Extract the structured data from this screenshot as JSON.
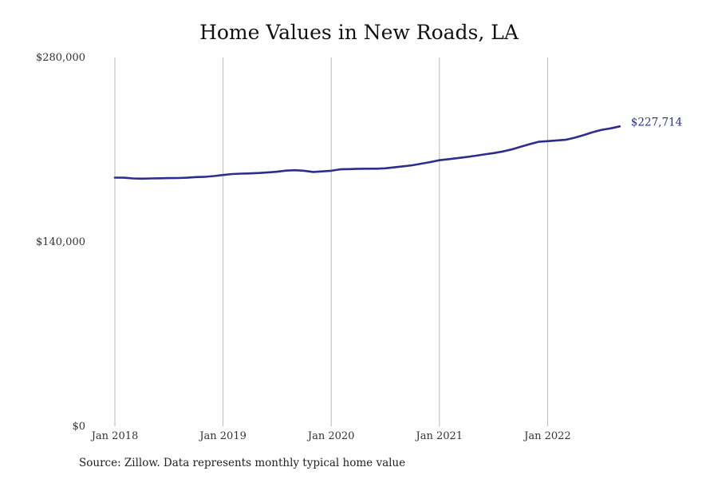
{
  "chart_data": {
    "type": "line",
    "title": "Home Values in New Roads, LA",
    "source": "Source: Zillow. Data represents monthly typical home value",
    "y_ticks": [
      {
        "value": 0,
        "label": "$0"
      },
      {
        "value": 140000,
        "label": "$140,000"
      },
      {
        "value": 280000,
        "label": "$280,000"
      }
    ],
    "x_ticks": [
      {
        "date": "2018-01",
        "label": "Jan 2018"
      },
      {
        "date": "2019-01",
        "label": "Jan 2019"
      },
      {
        "date": "2020-01",
        "label": "Jan 2020"
      },
      {
        "date": "2021-01",
        "label": "Jan 2021"
      },
      {
        "date": "2022-01",
        "label": "Jan 2022"
      }
    ],
    "ylim": [
      0,
      280000
    ],
    "xlim": [
      "2018-01",
      "2022-12"
    ],
    "grid": "vertical",
    "line_color": "#2e2d8f",
    "end_label": "$227,714",
    "series": [
      {
        "x": [
          "2018-01",
          "2018-02",
          "2018-03",
          "2018-04",
          "2018-05",
          "2018-06",
          "2018-07",
          "2018-08",
          "2018-09",
          "2018-10",
          "2018-11",
          "2018-12",
          "2019-01",
          "2019-02",
          "2019-03",
          "2019-04",
          "2019-05",
          "2019-06",
          "2019-07",
          "2019-08",
          "2019-09",
          "2019-10",
          "2019-11",
          "2019-12",
          "2020-01",
          "2020-02",
          "2020-03",
          "2020-04",
          "2020-05",
          "2020-06",
          "2020-07",
          "2020-08",
          "2020-09",
          "2020-10",
          "2020-11",
          "2020-12",
          "2021-01",
          "2021-02",
          "2021-03",
          "2021-04",
          "2021-05",
          "2021-06",
          "2021-07",
          "2021-08",
          "2021-09",
          "2021-10",
          "2021-11",
          "2021-12",
          "2022-01",
          "2022-02",
          "2022-03",
          "2022-04",
          "2022-05",
          "2022-06",
          "2022-07",
          "2022-08",
          "2022-09"
        ],
        "values": [
          188800,
          188700,
          188200,
          188000,
          188200,
          188300,
          188400,
          188500,
          188700,
          189200,
          189400,
          190000,
          190800,
          191500,
          191800,
          192000,
          192300,
          192800,
          193300,
          194100,
          194400,
          194000,
          193100,
          193500,
          194000,
          195100,
          195300,
          195500,
          195600,
          195600,
          195900,
          196600,
          197400,
          198200,
          199400,
          200600,
          202000,
          202800,
          203600,
          204400,
          205400,
          206400,
          207400,
          208600,
          210200,
          212200,
          214200,
          216000,
          216500,
          217000,
          217500,
          219100,
          221100,
          223300,
          225100,
          226200,
          227714
        ]
      }
    ]
  }
}
